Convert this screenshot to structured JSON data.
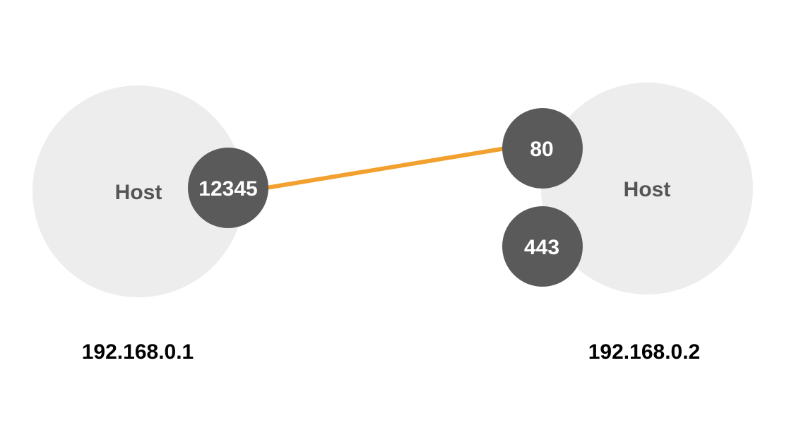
{
  "colors": {
    "host_fill": "#ededed",
    "port_fill": "#5a5a5a",
    "connection": "#f2a12f",
    "host_text": "#555555",
    "port_text": "#ffffff",
    "ip_text": "#000000"
  },
  "hosts": [
    {
      "label": "Host",
      "ip": "192.168.0.1",
      "ports": [
        "12345"
      ]
    },
    {
      "label": "Host",
      "ip": "192.168.0.2",
      "ports": [
        "80",
        "443"
      ]
    }
  ],
  "connections": [
    {
      "from": "12345",
      "to": "80"
    }
  ]
}
